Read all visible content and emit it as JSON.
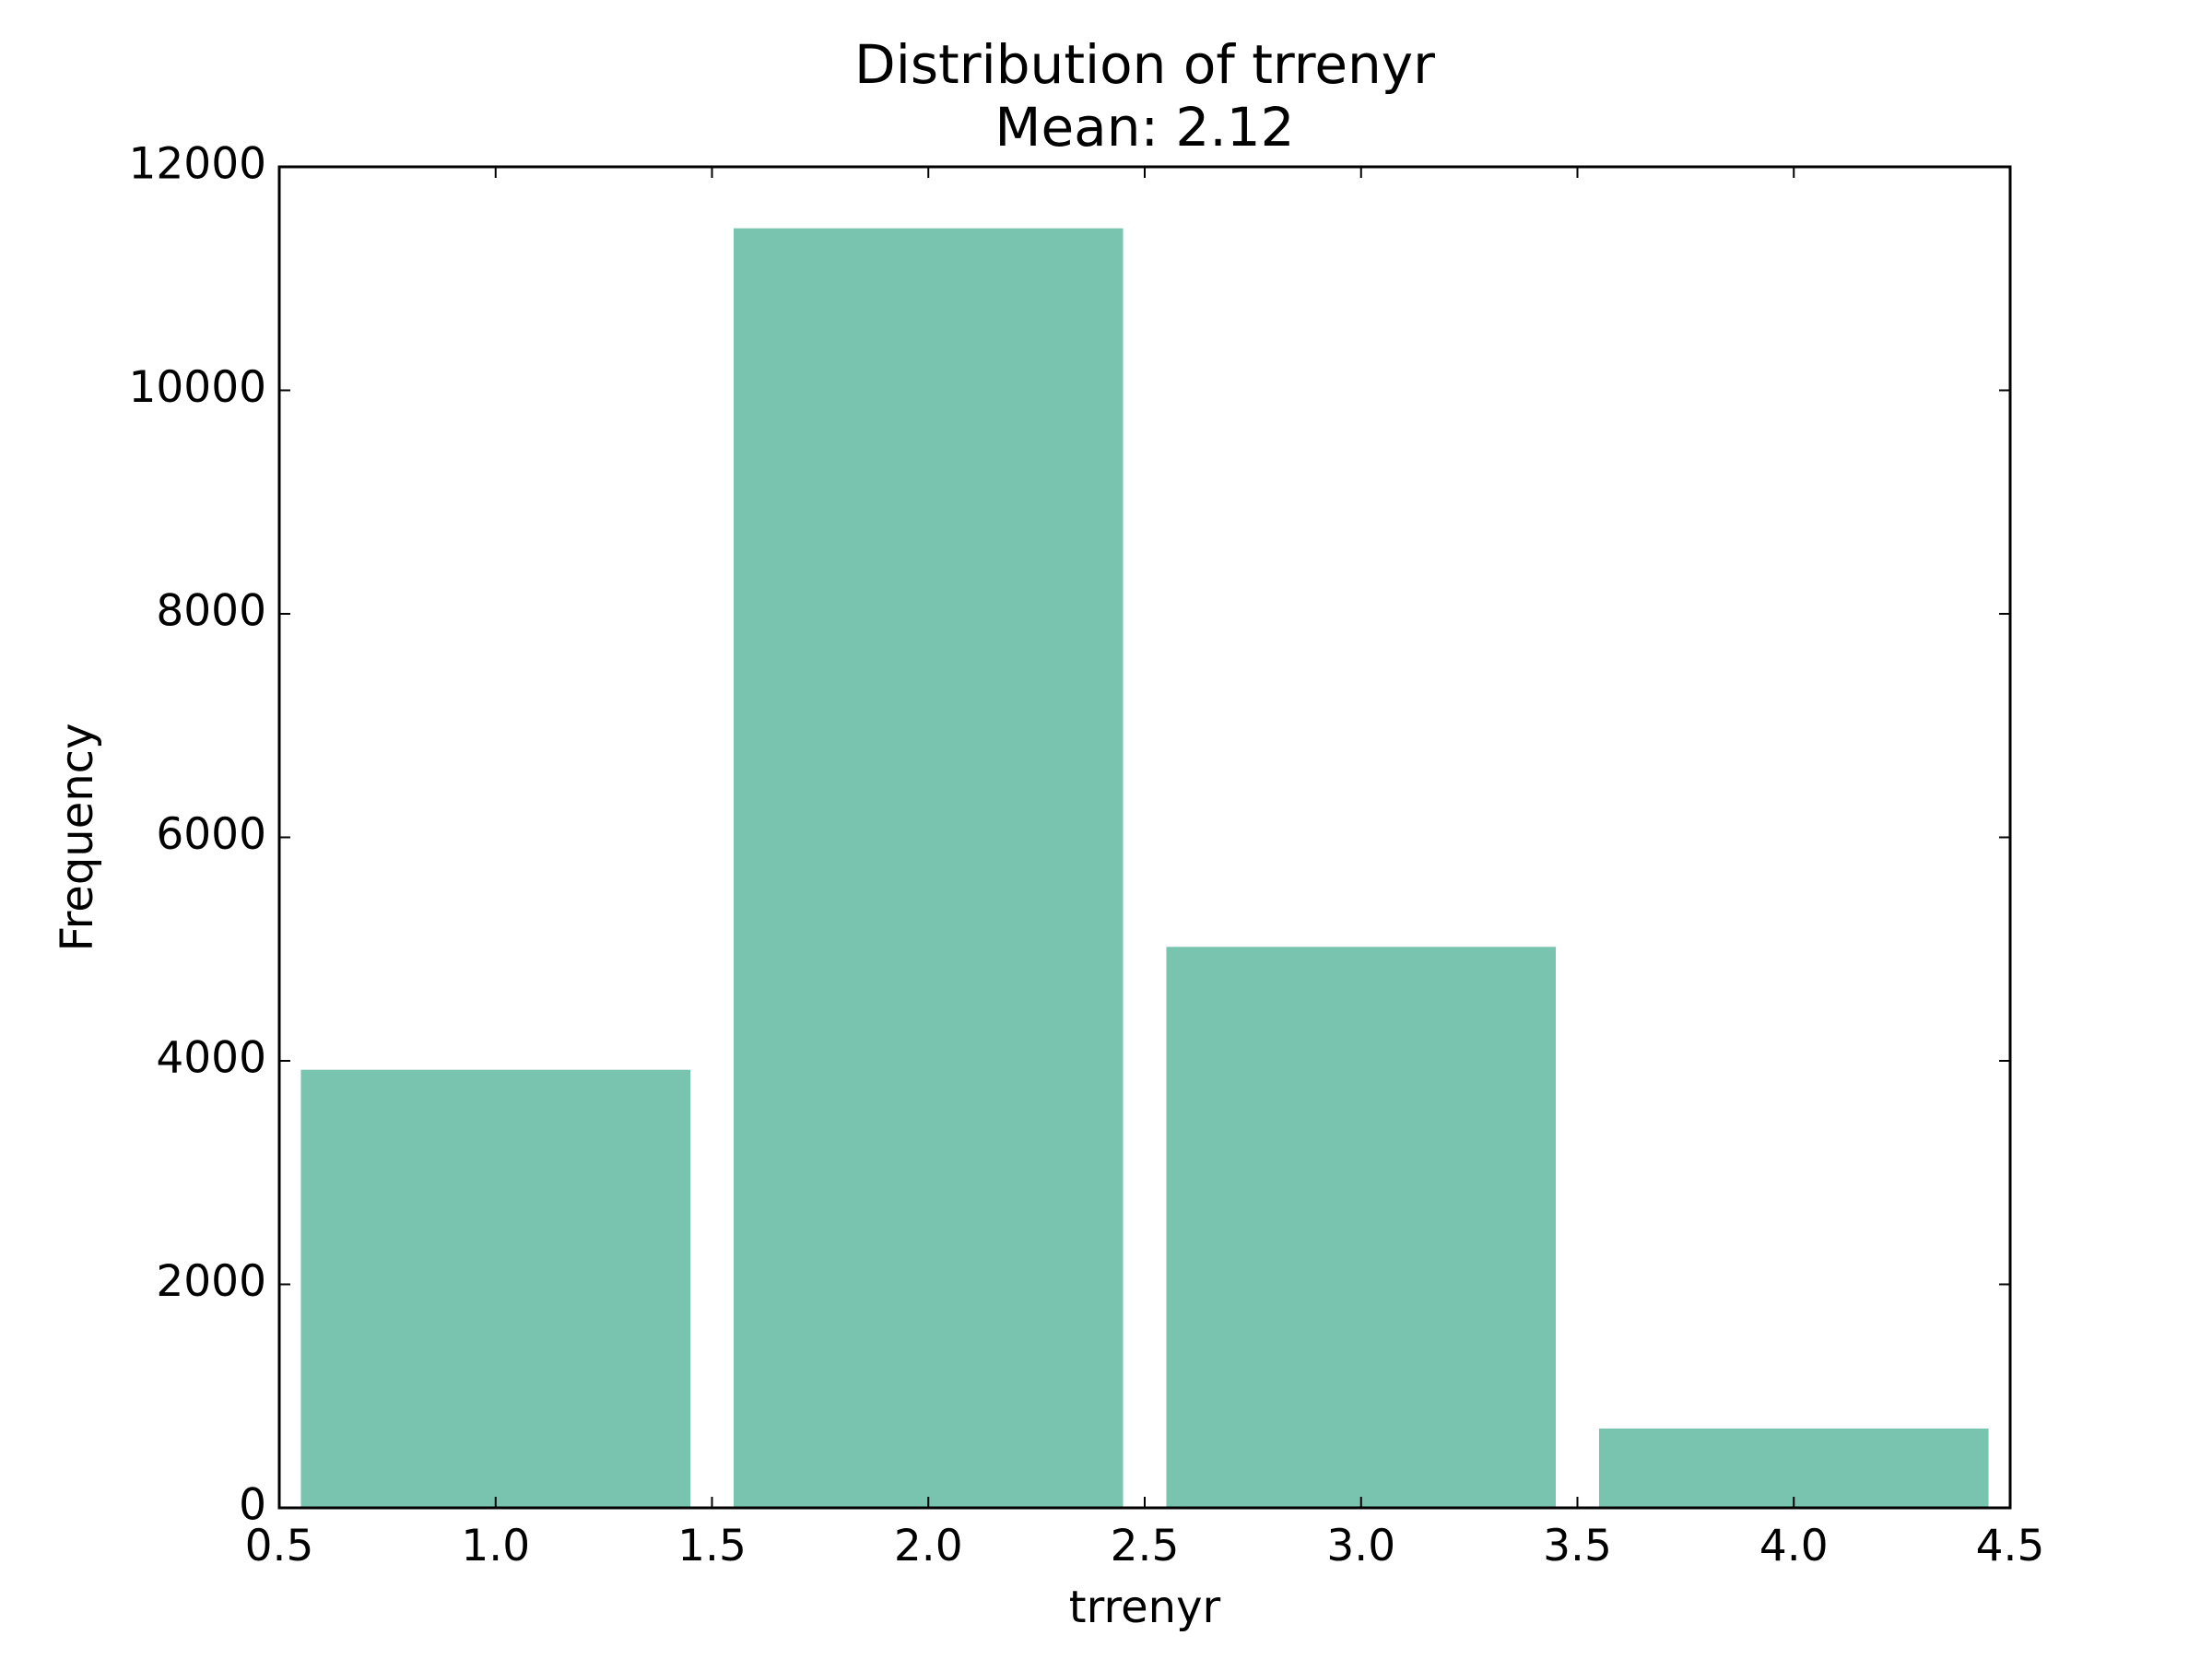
{
  "chart_data": {
    "type": "bar",
    "title": "Distribution of trrenyr",
    "subtitle": "Mean: 2.12",
    "xlabel": "trrenyr",
    "ylabel": "Frequency",
    "xlim": [
      0.5,
      4.5
    ],
    "ylim": [
      0,
      12000
    ],
    "x_ticks": [
      "0.5",
      "1.0",
      "1.5",
      "2.0",
      "2.5",
      "3.0",
      "3.5",
      "4.0",
      "4.5"
    ],
    "y_ticks": [
      "0",
      "2000",
      "4000",
      "6000",
      "8000",
      "10000",
      "12000"
    ],
    "bars": [
      {
        "x_start": 0.55,
        "x_end": 1.45,
        "value": 3920
      },
      {
        "x_start": 1.55,
        "x_end": 2.45,
        "value": 11450
      },
      {
        "x_start": 2.55,
        "x_end": 3.45,
        "value": 5020
      },
      {
        "x_start": 3.55,
        "x_end": 4.45,
        "value": 710
      }
    ],
    "bar_color": "#78c4ae",
    "grid": false,
    "legend": "none"
  }
}
